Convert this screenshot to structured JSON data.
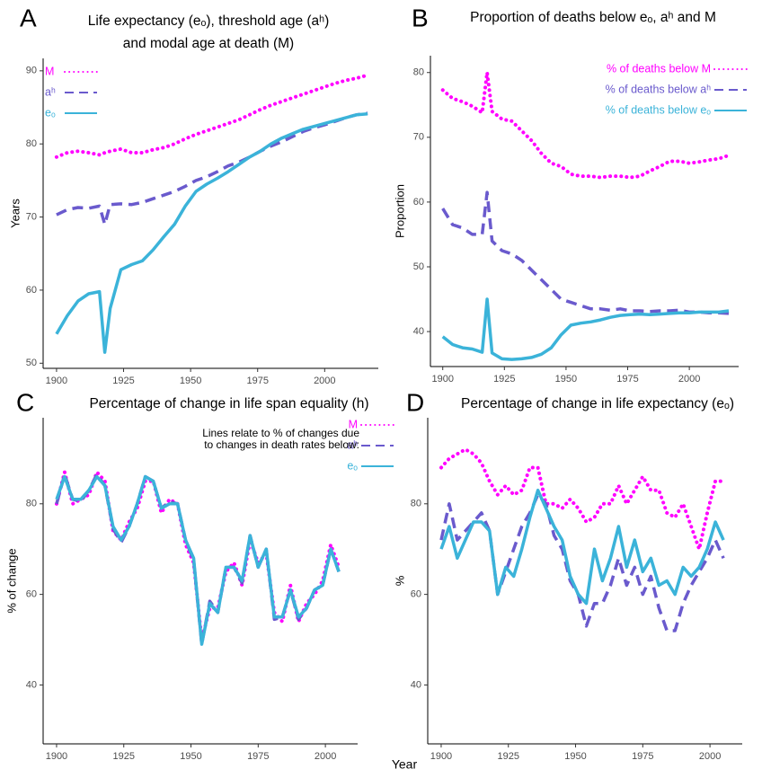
{
  "x_label": "Year",
  "chart_data": [
    {
      "type": "line",
      "label": "A",
      "title": [
        "Life expectancy (eₒ), threshold age  (aʰ)",
        "and modal age at death (M)"
      ],
      "ylabel": "Years",
      "legend": "top-left",
      "x": [
        1900,
        1904,
        1908,
        1912,
        1916,
        1918,
        1920,
        1924,
        1928,
        1932,
        1936,
        1940,
        1944,
        1948,
        1952,
        1956,
        1960,
        1964,
        1968,
        1972,
        1976,
        1980,
        1984,
        1988,
        1992,
        1996,
        2000,
        2004,
        2008,
        2012,
        2016
      ],
      "xlim": [
        1895,
        2020
      ],
      "xticks": [
        1900,
        1925,
        1950,
        1975,
        2000
      ],
      "ylim": [
        49.3,
        91.7
      ],
      "yticks": [
        50,
        60,
        70,
        80,
        90
      ],
      "series": [
        {
          "name": "M",
          "color": "#ff00ff",
          "style": "dotted",
          "values": [
            78.2,
            78.8,
            79,
            78.8,
            78.5,
            78.8,
            79,
            79.3,
            78.8,
            78.8,
            79.2,
            79.5,
            80,
            80.7,
            81.3,
            81.8,
            82.3,
            82.8,
            83.3,
            84,
            84.7,
            85.3,
            85.8,
            86.3,
            86.8,
            87.3,
            87.8,
            88.3,
            88.7,
            89,
            89.4
          ]
        },
        {
          "name": "aʰ",
          "color": "#6a5acd",
          "style": "dashed",
          "values": [
            70.3,
            71,
            71.3,
            71.2,
            71.5,
            69,
            71.7,
            71.8,
            71.7,
            72,
            72.5,
            73,
            73.5,
            74.2,
            75,
            75.5,
            76.2,
            77,
            77.5,
            78.2,
            79,
            79.7,
            80.3,
            81,
            81.7,
            82.2,
            82.6,
            83.1,
            83.6,
            84,
            84.2
          ]
        },
        {
          "name": "eₒ",
          "color": "#3bb3d9",
          "style": "solid",
          "values": [
            54,
            56.5,
            58.5,
            59.5,
            59.8,
            51.5,
            57.5,
            62.8,
            63.5,
            64,
            65.5,
            67.3,
            69,
            71.5,
            73.5,
            74.5,
            75.3,
            76.2,
            77.2,
            78.2,
            79,
            80,
            80.8,
            81.4,
            82,
            82.4,
            82.8,
            83.2,
            83.6,
            84,
            84.1
          ]
        }
      ]
    },
    {
      "type": "line",
      "label": "B",
      "title": [
        "Proportion of deaths below eₒ, aʰ and M"
      ],
      "ylabel": "Proportion",
      "legend": "top-right",
      "x": [
        1900,
        1904,
        1908,
        1912,
        1916,
        1918,
        1920,
        1924,
        1928,
        1932,
        1936,
        1940,
        1944,
        1948,
        1952,
        1956,
        1960,
        1964,
        1968,
        1972,
        1976,
        1980,
        1984,
        1988,
        1992,
        1996,
        2000,
        2004,
        2008,
        2012,
        2016
      ],
      "xlim": [
        1895,
        2020
      ],
      "xticks": [
        1900,
        1925,
        1950,
        1975,
        2000
      ],
      "ylim": [
        34.6,
        82.6
      ],
      "yticks": [
        40,
        50,
        60,
        70,
        80
      ],
      "series": [
        {
          "name": "% of deaths below M",
          "color": "#ff00ff",
          "style": "dotted",
          "values": [
            77.3,
            76,
            75.5,
            74.8,
            73.8,
            80,
            74,
            72.8,
            72.5,
            71,
            69.5,
            67.5,
            66,
            65.5,
            64.3,
            64,
            64,
            63.8,
            64,
            64,
            63.8,
            64,
            64.8,
            65.5,
            66.3,
            66.3,
            66,
            66.2,
            66.5,
            66.7,
            67.2
          ]
        },
        {
          "name": "% of deaths below aʰ",
          "color": "#6a5acd",
          "style": "dashed",
          "values": [
            59,
            56.5,
            56,
            55,
            55,
            61.5,
            54,
            52.5,
            52,
            51,
            49.5,
            48,
            46.5,
            45,
            44.5,
            44,
            43.5,
            43.5,
            43.3,
            43.5,
            43.2,
            43.2,
            43.1,
            43.2,
            43.2,
            43.3,
            43,
            43,
            42.9,
            42.9,
            42.8
          ]
        },
        {
          "name": "% of deaths below eₒ",
          "color": "#3bb3d9",
          "style": "solid",
          "values": [
            39.2,
            38,
            37.5,
            37.3,
            36.8,
            45,
            36.7,
            35.8,
            35.7,
            35.8,
            36,
            36.5,
            37.5,
            39.5,
            41,
            41.3,
            41.5,
            41.8,
            42.2,
            42.5,
            42.6,
            42.7,
            42.6,
            42.7,
            42.8,
            42.9,
            42.9,
            43,
            43,
            43,
            43.2
          ]
        }
      ]
    },
    {
      "type": "line",
      "label": "C",
      "title": [
        "Percentage of change in life span equality (h)"
      ],
      "ylabel": "% of change",
      "legend": "top-right",
      "annotation": [
        "Lines relate to % of changes due",
        "to changes in death rates below:"
      ],
      "x": [
        1900,
        1903,
        1906,
        1909,
        1912,
        1915,
        1918,
        1921,
        1924,
        1927,
        1930,
        1933,
        1936,
        1939,
        1942,
        1945,
        1948,
        1951,
        1954,
        1957,
        1960,
        1963,
        1966,
        1969,
        1972,
        1975,
        1978,
        1981,
        1984,
        1987,
        1990,
        1993,
        1996,
        1999,
        2002,
        2005
      ],
      "xlim": [
        1895,
        2012
      ],
      "xticks": [
        1900,
        1925,
        1950,
        1975,
        2000
      ],
      "ylim": [
        27,
        99
      ],
      "yticks": [
        40,
        60,
        80
      ],
      "series": [
        {
          "name": "M",
          "color": "#ff00ff",
          "style": "dotted",
          "values": [
            80,
            87,
            80,
            81,
            82,
            87,
            85,
            74,
            72,
            76,
            79,
            85,
            85,
            78,
            81,
            80,
            71,
            67,
            50,
            57,
            57,
            65,
            67,
            62,
            72,
            67,
            69,
            56,
            54,
            62,
            54,
            58,
            60,
            63,
            71,
            66
          ]
        },
        {
          "name": "aʰ",
          "color": "#6a5acd",
          "style": "dashed",
          "values": [
            80,
            86.5,
            81,
            80.5,
            83,
            86.5,
            84,
            74.5,
            71.5,
            75,
            80,
            86,
            85,
            79,
            80.5,
            80,
            72,
            67.5,
            49,
            58.5,
            56,
            66,
            66,
            62.5,
            73,
            66,
            70,
            54.5,
            55,
            61,
            54.5,
            57,
            61,
            62,
            70,
            65
          ]
        },
        {
          "name": "eₒ",
          "color": "#3bb3d9",
          "style": "solid",
          "values": [
            81,
            86,
            81,
            81,
            83,
            86,
            84,
            75,
            72,
            75,
            80,
            86,
            85,
            79,
            80,
            80,
            72,
            68,
            49,
            58,
            56,
            66,
            66,
            63,
            73,
            66,
            70,
            55,
            55,
            61,
            55,
            57,
            61,
            62,
            70,
            65
          ]
        }
      ]
    },
    {
      "type": "line",
      "label": "D",
      "title": [
        "Percentage of change in life expectancy (eₒ)"
      ],
      "ylabel": "%",
      "x": [
        1900,
        1903,
        1906,
        1909,
        1912,
        1915,
        1918,
        1921,
        1924,
        1927,
        1930,
        1933,
        1936,
        1939,
        1942,
        1945,
        1948,
        1951,
        1954,
        1957,
        1960,
        1963,
        1966,
        1969,
        1972,
        1975,
        1978,
        1981,
        1984,
        1987,
        1990,
        1993,
        1996,
        1999,
        2002,
        2005
      ],
      "xlim": [
        1895,
        2012
      ],
      "xticks": [
        1900,
        1925,
        1950,
        1975,
        2000
      ],
      "ylim": [
        27,
        99
      ],
      "yticks": [
        40,
        60,
        80
      ],
      "series": [
        {
          "color": "#ff00ff",
          "style": "dotted",
          "values": [
            88,
            90,
            91,
            92,
            91,
            89,
            85,
            82,
            84,
            82,
            83,
            88,
            88,
            80,
            80,
            79,
            81,
            79,
            76,
            77,
            80,
            80,
            84,
            80,
            83,
            86,
            83,
            83,
            78,
            77,
            80,
            75,
            70,
            78,
            85,
            85
          ]
        },
        {
          "color": "#6a5acd",
          "style": "dashed",
          "values": [
            72,
            80,
            72,
            74,
            76,
            78,
            74,
            60,
            65,
            70,
            75,
            78,
            82,
            80,
            73,
            70,
            63,
            60,
            53,
            58,
            58,
            62,
            68,
            62,
            66,
            60,
            64,
            57,
            52,
            52,
            58,
            62,
            65,
            68,
            72,
            68
          ]
        },
        {
          "color": "#3bb3d9",
          "style": "solid",
          "values": [
            70,
            75,
            68,
            72,
            76,
            76,
            74,
            60,
            66,
            64,
            70,
            77,
            83,
            79,
            75,
            72,
            64,
            60,
            58,
            70,
            63,
            68,
            75,
            66,
            72,
            65,
            68,
            62,
            63,
            60,
            66,
            64,
            66,
            70,
            76,
            72
          ]
        }
      ]
    }
  ]
}
